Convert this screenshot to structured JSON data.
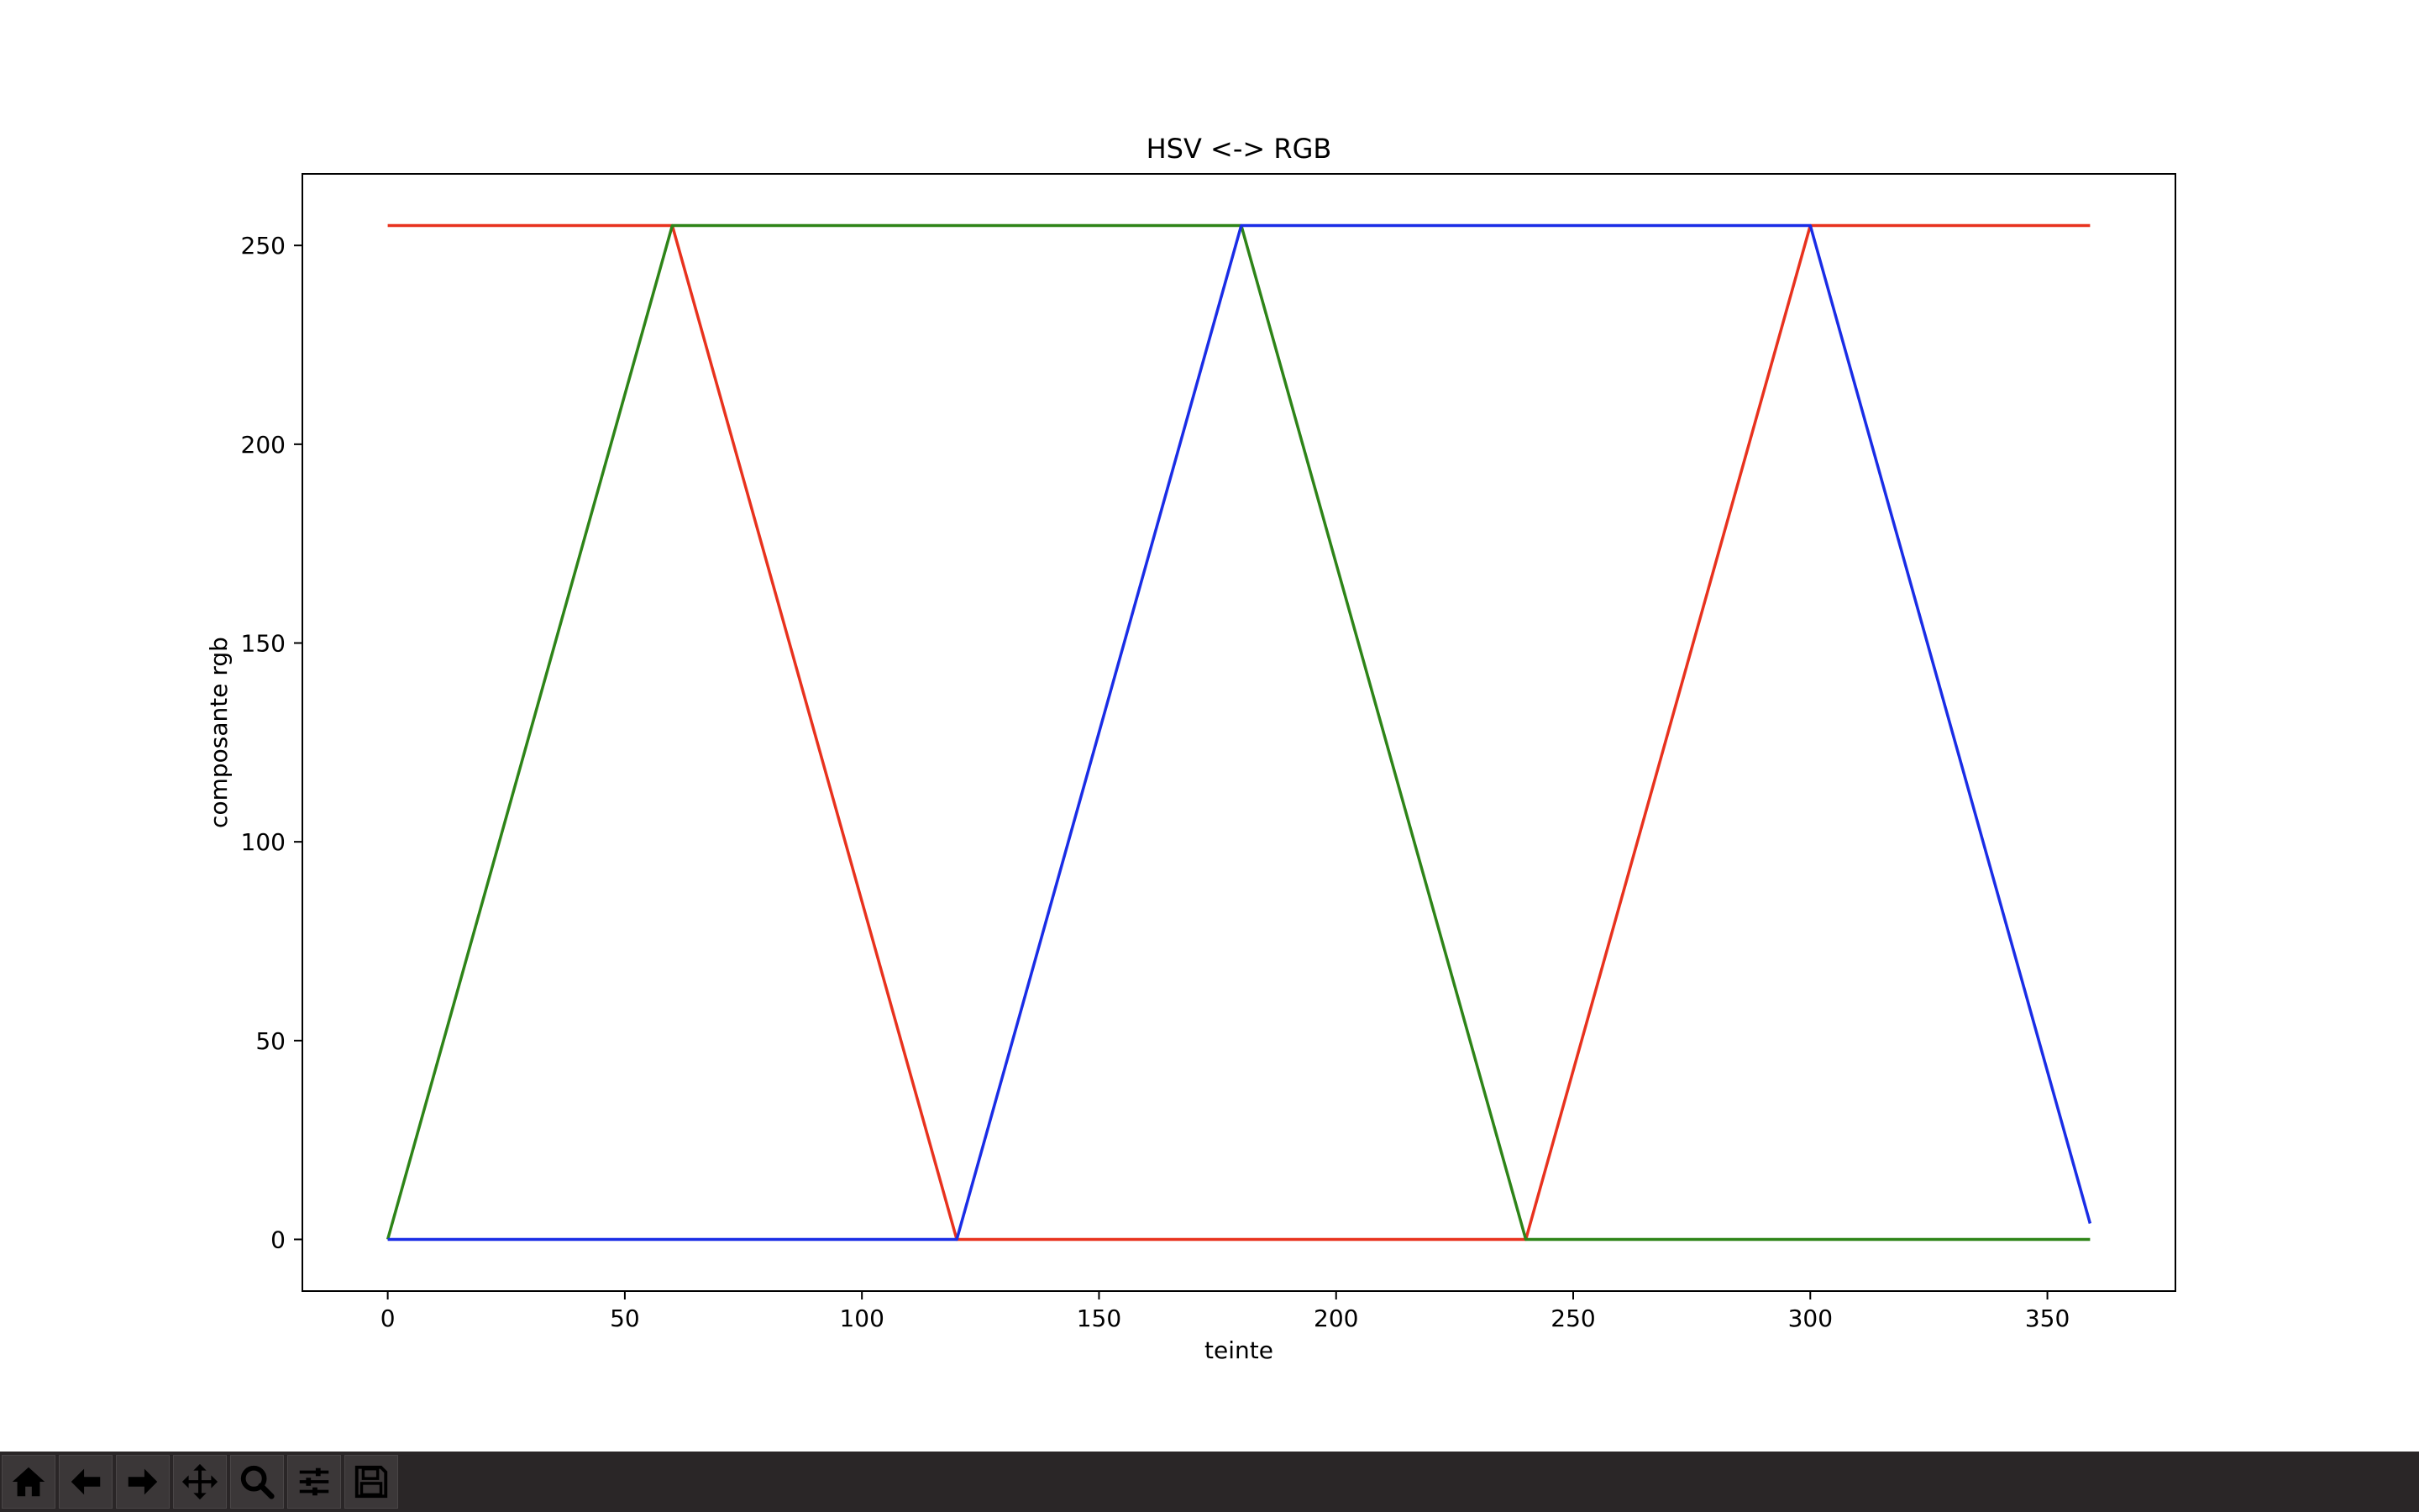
{
  "chart_data": {
    "type": "line",
    "title": "HSV <-> RGB",
    "xlabel": "teinte",
    "ylabel": "composante rgb",
    "xlim": [
      -18,
      377
    ],
    "ylim": [
      -13,
      268
    ],
    "xticks": [
      0,
      50,
      100,
      150,
      200,
      250,
      300,
      350
    ],
    "yticks": [
      0,
      50,
      100,
      150,
      200,
      250
    ],
    "grid": false,
    "legend": "none",
    "series": [
      {
        "color": "#e8321e",
        "points": [
          [
            0,
            255
          ],
          [
            60,
            255
          ],
          [
            120,
            0
          ],
          [
            240,
            0
          ],
          [
            300,
            255
          ],
          [
            359,
            255
          ]
        ]
      },
      {
        "color": "#2e8418",
        "points": [
          [
            0,
            0
          ],
          [
            60,
            255
          ],
          [
            180,
            255
          ],
          [
            240,
            0
          ],
          [
            359,
            0
          ]
        ]
      },
      {
        "color": "#1a2de6",
        "points": [
          [
            0,
            0
          ],
          [
            120,
            0
          ],
          [
            180,
            255
          ],
          [
            300,
            255
          ],
          [
            359,
            4
          ]
        ]
      }
    ]
  },
  "toolbar": {
    "buttons": [
      "home-icon",
      "back-arrow-icon",
      "forward-arrow-icon",
      "pan-icon",
      "zoom-icon",
      "configure-subplots-icon",
      "save-icon"
    ]
  }
}
